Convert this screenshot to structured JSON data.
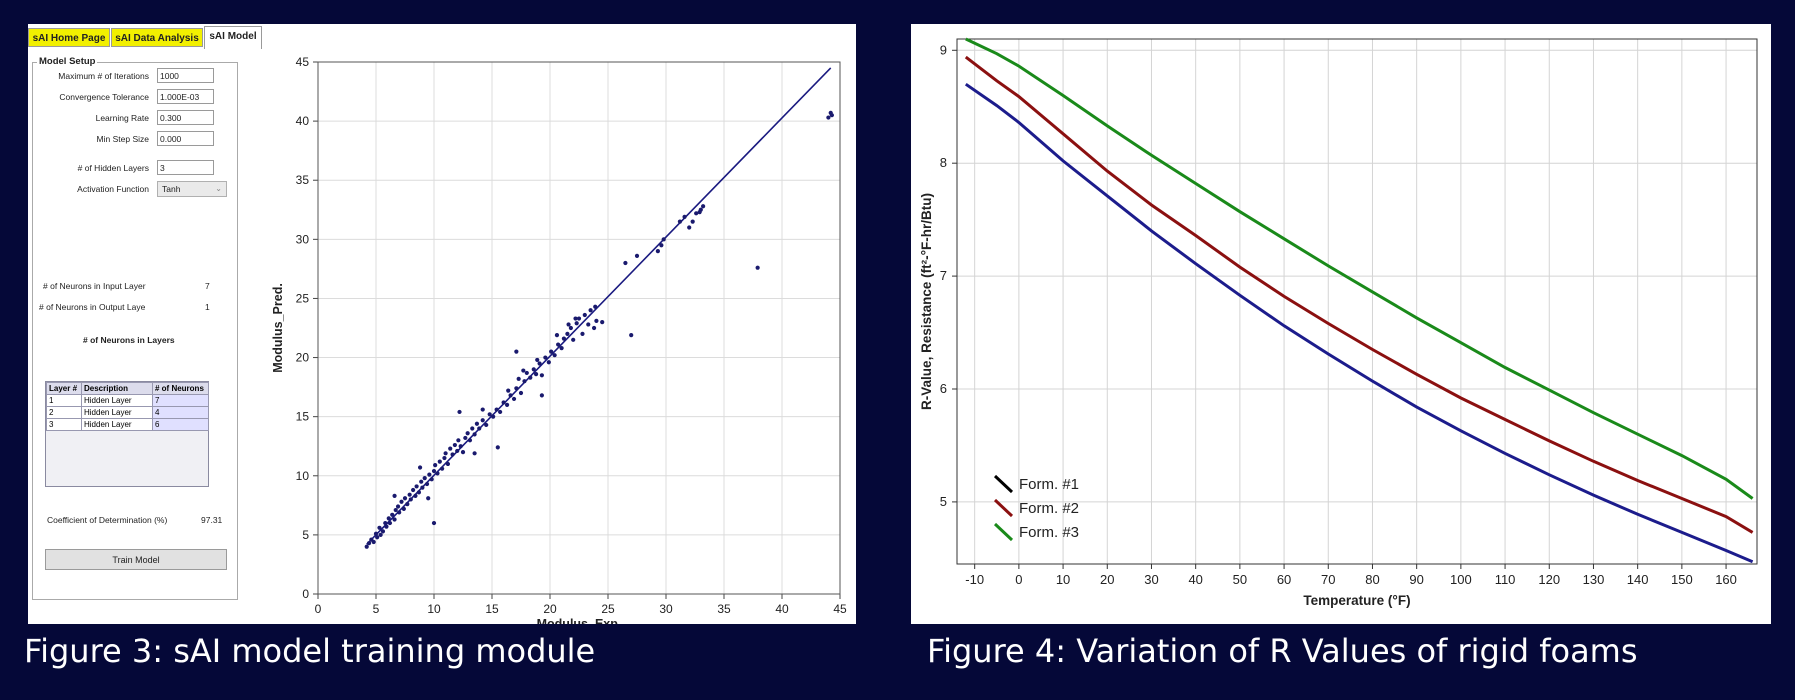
{
  "tabs": [
    {
      "label": "sAI Home Page"
    },
    {
      "label": "sAI Data Analysis"
    },
    {
      "label": "sAI Model"
    }
  ],
  "model_setup": {
    "title": "Model Setup",
    "fields": [
      {
        "label": "Maximum # of Iterations",
        "value": "1000"
      },
      {
        "label": "Convergence Tolerance",
        "value": "1.000E-03"
      },
      {
        "label": "Learning Rate",
        "value": "0.300"
      },
      {
        "label": "Min Step Size",
        "value": "0.000"
      },
      {
        "label": "# of Hidden Layers",
        "value": "3"
      }
    ],
    "activation": {
      "label": "Activation Function",
      "value": "Tanh"
    },
    "input_neurons": {
      "label": "# of Neurons in Input Layer",
      "value": "7"
    },
    "output_neurons": {
      "label": "# of Neurons in Output Laye",
      "value": "1"
    },
    "neurons_title": "# of Neurons in Layers",
    "table": {
      "headers": [
        "Layer #",
        "Description",
        "# of Neurons"
      ],
      "rows": [
        [
          "1",
          "Hidden Layer",
          "7"
        ],
        [
          "2",
          "Hidden Layer",
          "4"
        ],
        [
          "3",
          "Hidden Layer",
          "6"
        ]
      ]
    },
    "coefficient": {
      "label": "Coefficient of Determination (%)",
      "value": "97.31"
    },
    "train_button": "Train Model"
  },
  "caption_left": "Figure 3: sAI model training module",
  "caption_right": "Figure 4: Variation of R Values of rigid foams",
  "chart_data": [
    {
      "type": "scatter",
      "xlabel": "Modulus_Exp.",
      "ylabel": "Modulus_Pred.",
      "xlim": [
        0,
        45
      ],
      "ylim": [
        0,
        45
      ],
      "xticks": [
        0,
        5,
        10,
        15,
        20,
        25,
        30,
        35,
        40,
        45
      ],
      "yticks": [
        0,
        5,
        10,
        15,
        20,
        25,
        30,
        35,
        40,
        45
      ],
      "xtick_labels": [
        "0",
        "5",
        "10",
        "15",
        "20",
        "25",
        "30",
        "35",
        "40",
        "45"
      ],
      "ytick_labels": [
        "0",
        "5",
        "10",
        "15",
        "20",
        "25",
        "30",
        "35",
        "40",
        "45"
      ],
      "grid": true,
      "point_color": "#1a1a6e",
      "line_color": "#1a1a80",
      "fit_line": [
        [
          4.2,
          4.2
        ],
        [
          44.2,
          44.5
        ]
      ],
      "points": [
        [
          4.2,
          4.0
        ],
        [
          4.4,
          4.3
        ],
        [
          4.6,
          4.6
        ],
        [
          4.8,
          4.4
        ],
        [
          5.0,
          5.1
        ],
        [
          5.1,
          4.8
        ],
        [
          5.3,
          5.6
        ],
        [
          5.4,
          5.0
        ],
        [
          5.6,
          5.3
        ],
        [
          5.8,
          6.0
        ],
        [
          5.9,
          5.7
        ],
        [
          6.1,
          6.4
        ],
        [
          6.2,
          6.0
        ],
        [
          6.4,
          6.7
        ],
        [
          6.6,
          6.3
        ],
        [
          6.7,
          7.1
        ],
        [
          6.9,
          7.4
        ],
        [
          7.0,
          6.9
        ],
        [
          7.2,
          7.8
        ],
        [
          7.4,
          7.2
        ],
        [
          7.5,
          8.1
        ],
        [
          7.7,
          7.6
        ],
        [
          7.9,
          8.4
        ],
        [
          8.0,
          8.0
        ],
        [
          8.2,
          8.8
        ],
        [
          8.4,
          8.3
        ],
        [
          8.5,
          9.1
        ],
        [
          8.7,
          8.6
        ],
        [
          8.9,
          9.5
        ],
        [
          9.0,
          9.0
        ],
        [
          9.2,
          9.8
        ],
        [
          9.4,
          9.3
        ],
        [
          9.6,
          10.1
        ],
        [
          9.8,
          9.7
        ],
        [
          10.0,
          10.4
        ],
        [
          10.1,
          10.9
        ],
        [
          10.3,
          10.2
        ],
        [
          10.5,
          11.2
        ],
        [
          10.7,
          10.6
        ],
        [
          10.9,
          11.5
        ],
        [
          11.0,
          11.9
        ],
        [
          11.2,
          11.0
        ],
        [
          11.4,
          12.3
        ],
        [
          11.6,
          11.8
        ],
        [
          11.8,
          12.6
        ],
        [
          12.0,
          12.1
        ],
        [
          12.1,
          13.0
        ],
        [
          12.3,
          12.5
        ],
        [
          12.5,
          12.0
        ],
        [
          12.7,
          13.2
        ],
        [
          12.9,
          13.6
        ],
        [
          13.1,
          13.0
        ],
        [
          13.3,
          14.0
        ],
        [
          13.5,
          13.5
        ],
        [
          13.7,
          14.4
        ],
        [
          13.9,
          14.0
        ],
        [
          14.2,
          14.7
        ],
        [
          14.5,
          14.3
        ],
        [
          14.8,
          15.2
        ],
        [
          15.1,
          15.0
        ],
        [
          15.4,
          15.6
        ],
        [
          15.7,
          15.4
        ],
        [
          16.0,
          16.2
        ],
        [
          16.3,
          16.0
        ],
        [
          16.6,
          16.8
        ],
        [
          16.9,
          16.5
        ],
        [
          17.1,
          17.4
        ],
        [
          17.3,
          18.2
        ],
        [
          17.5,
          17.0
        ],
        [
          17.8,
          18.0
        ],
        [
          18.0,
          18.7
        ],
        [
          18.3,
          18.3
        ],
        [
          18.6,
          19.0
        ],
        [
          18.8,
          18.6
        ],
        [
          19.1,
          19.5
        ],
        [
          19.3,
          18.5
        ],
        [
          19.6,
          20.0
        ],
        [
          19.9,
          19.6
        ],
        [
          20.1,
          20.5
        ],
        [
          20.4,
          20.2
        ],
        [
          20.7,
          21.1
        ],
        [
          21.0,
          20.8
        ],
        [
          21.2,
          21.6
        ],
        [
          21.5,
          22.0
        ],
        [
          21.8,
          22.5
        ],
        [
          22.0,
          21.5
        ],
        [
          22.3,
          22.9
        ],
        [
          22.5,
          23.3
        ],
        [
          22.8,
          22.0
        ],
        [
          23.0,
          23.6
        ],
        [
          23.3,
          22.8
        ],
        [
          23.5,
          24.0
        ],
        [
          23.8,
          22.5
        ],
        [
          24.0,
          23.1
        ],
        [
          24.5,
          23.0
        ],
        [
          14.2,
          15.6
        ],
        [
          17.1,
          20.5
        ],
        [
          8.8,
          10.7
        ],
        [
          6.6,
          8.3
        ],
        [
          13.5,
          11.9
        ],
        [
          10.0,
          6.0
        ],
        [
          15.5,
          12.4
        ],
        [
          19.3,
          16.8
        ],
        [
          12.2,
          15.4
        ],
        [
          9.5,
          8.1
        ],
        [
          26.5,
          28.0
        ],
        [
          27.5,
          28.6
        ],
        [
          29.3,
          29.0
        ],
        [
          29.6,
          29.5
        ],
        [
          29.8,
          30.0
        ],
        [
          31.2,
          31.5
        ],
        [
          31.6,
          31.9
        ],
        [
          32.0,
          31.0
        ],
        [
          32.3,
          31.5
        ],
        [
          32.6,
          32.2
        ],
        [
          33.0,
          32.5
        ],
        [
          33.2,
          32.8
        ],
        [
          32.9,
          32.3
        ],
        [
          27.0,
          21.9
        ],
        [
          37.9,
          27.6
        ],
        [
          44.0,
          40.3
        ],
        [
          44.2,
          40.7
        ],
        [
          44.3,
          40.5
        ],
        [
          22.2,
          23.3
        ],
        [
          23.9,
          24.3
        ],
        [
          21.6,
          22.8
        ],
        [
          20.6,
          21.9
        ],
        [
          16.4,
          17.2
        ],
        [
          17.7,
          18.9
        ],
        [
          18.9,
          19.8
        ]
      ]
    },
    {
      "type": "line",
      "xlabel": "Temperature (°F)",
      "ylabel": "R-Value, Resistance (ft²-°F-hr/Btu)",
      "xlim": [
        -14,
        167
      ],
      "ylim": [
        4.45,
        9.1
      ],
      "xticks": [
        -10,
        0,
        10,
        20,
        30,
        40,
        50,
        60,
        70,
        80,
        90,
        100,
        110,
        120,
        130,
        140,
        150,
        160
      ],
      "yticks": [
        5,
        6,
        7,
        8,
        9
      ],
      "xtick_labels": [
        "-10",
        "0",
        "10",
        "20",
        "30",
        "40",
        "50",
        "60",
        "70",
        "80",
        "90",
        "100",
        "110",
        "120",
        "130",
        "140",
        "150",
        "160"
      ],
      "ytick_labels": [
        "5",
        "6",
        "7",
        "8",
        "9"
      ],
      "grid": true,
      "legend_position": "bottom-left",
      "x": [
        -12,
        -5,
        0,
        10,
        20,
        30,
        40,
        50,
        60,
        70,
        80,
        90,
        100,
        110,
        120,
        130,
        140,
        150,
        160,
        166
      ],
      "series": [
        {
          "name": "Form. #1",
          "legend_color": "#000000",
          "color": "#1c1c8c",
          "values": [
            8.7,
            8.51,
            8.36,
            8.02,
            7.71,
            7.4,
            7.11,
            6.83,
            6.56,
            6.31,
            6.07,
            5.84,
            5.63,
            5.43,
            5.24,
            5.06,
            4.89,
            4.73,
            4.57,
            4.47
          ]
        },
        {
          "name": "Form. #2",
          "legend_color": "#8b1010",
          "color": "#8b1010",
          "values": [
            8.94,
            8.73,
            8.59,
            8.26,
            7.93,
            7.63,
            7.36,
            7.08,
            6.82,
            6.58,
            6.35,
            6.13,
            5.92,
            5.73,
            5.54,
            5.36,
            5.19,
            5.03,
            4.87,
            4.73
          ]
        },
        {
          "name": "Form. #3",
          "legend_color": "#1a8a1a",
          "color": "#1a8a1a",
          "values": [
            9.1,
            8.97,
            8.86,
            8.6,
            8.33,
            8.07,
            7.82,
            7.57,
            7.33,
            7.09,
            6.86,
            6.63,
            6.41,
            6.19,
            5.99,
            5.79,
            5.6,
            5.41,
            5.2,
            5.03
          ]
        }
      ]
    }
  ]
}
